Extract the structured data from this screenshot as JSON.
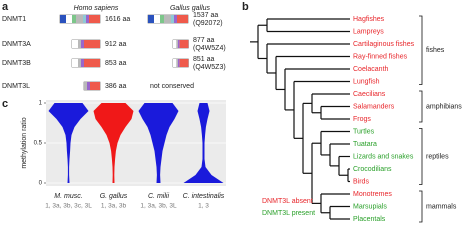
{
  "panel_a": {
    "label": "a",
    "species": [
      "Homo sapiens",
      "Gallus gallus"
    ],
    "proteins": [
      {
        "name": "DNMT1",
        "human": "1616 aa",
        "chicken": "1537 aa",
        "chicken_id": "(Q92072)"
      },
      {
        "name": "DNMT3A",
        "human": "912 aa",
        "chicken": "877 aa",
        "chicken_id": "(Q4W5Z4)"
      },
      {
        "name": "DNMT3B",
        "human": "853 aa",
        "chicken": "851 aa",
        "chicken_id": "(Q4W5Z3)"
      },
      {
        "name": "DNMT3L",
        "human": "386 aa",
        "chicken": "not conserved"
      }
    ]
  },
  "panel_b": {
    "label": "b",
    "taxa": [
      {
        "label": "Hagfishes",
        "color": "#e8262b"
      },
      {
        "label": "Lampreys",
        "color": "#e8262b"
      },
      {
        "label": "Cartilaginous fishes",
        "color": "#e8262b"
      },
      {
        "label": "Ray-finned fishes",
        "color": "#e8262b"
      },
      {
        "label": "Coelacanth",
        "color": "#e8262b"
      },
      {
        "label": "Lungfish",
        "color": "#e8262b"
      },
      {
        "label": "Caecilians",
        "color": "#e8262b"
      },
      {
        "label": "Salamanders",
        "color": "#e8262b"
      },
      {
        "label": "Frogs",
        "color": "#e8262b"
      },
      {
        "label": "Turtles",
        "color": "#2aa02a"
      },
      {
        "label": "Tuatara",
        "color": "#2aa02a"
      },
      {
        "label": "Lizards and snakes",
        "color": "#2aa02a"
      },
      {
        "label": "Crocodilians",
        "color": "#2aa02a"
      },
      {
        "label": "Birds",
        "color": "#e8262b"
      },
      {
        "label": "Monotremes",
        "color": "#e8262b"
      },
      {
        "label": "Marsupials",
        "color": "#2aa02a"
      },
      {
        "label": "Placentals",
        "color": "#2aa02a"
      }
    ],
    "groups": [
      "fishes",
      "amphibians",
      "reptiles",
      "mammals"
    ],
    "legend": [
      {
        "label": "DNMT3L absent",
        "color": "#e8262b"
      },
      {
        "label": "DNMT3L present",
        "color": "#2aa02a"
      }
    ]
  },
  "chart_data": {
    "type": "violin",
    "panel_label": "c",
    "ylabel": "methylation ratio",
    "ylim": [
      0,
      1
    ],
    "yticks": [
      0,
      0.5,
      1
    ],
    "categories": [
      "M. musc.",
      "G. gallus",
      "C. milii",
      "C. intestinalis"
    ],
    "sublabels": [
      "1, 3a, 3b, 3c, 3L",
      "1, 3a, 3b",
      "1, 3a, 3b, 3L",
      "1, 3"
    ],
    "violins": [
      {
        "color": "#1a1adb",
        "density": [
          0.05,
          0.03,
          0.03,
          0.05,
          0.08,
          0.1,
          0.15,
          0.3,
          0.6,
          1,
          0.7
        ]
      },
      {
        "color": "#f01818",
        "density": [
          0.05,
          0.04,
          0.05,
          0.08,
          0.12,
          0.2,
          0.35,
          0.6,
          0.9,
          1,
          0.6
        ]
      },
      {
        "color": "#1a1adb",
        "density": [
          0.1,
          0.08,
          0.1,
          0.15,
          0.2,
          0.3,
          0.4,
          0.55,
          0.8,
          1,
          0.7
        ]
      },
      {
        "color": "#1a1adb",
        "density": [
          1,
          0.4,
          0.1,
          0.05,
          0.05,
          0.05,
          0.08,
          0.12,
          0.2,
          0.3,
          0.2
        ]
      }
    ]
  }
}
